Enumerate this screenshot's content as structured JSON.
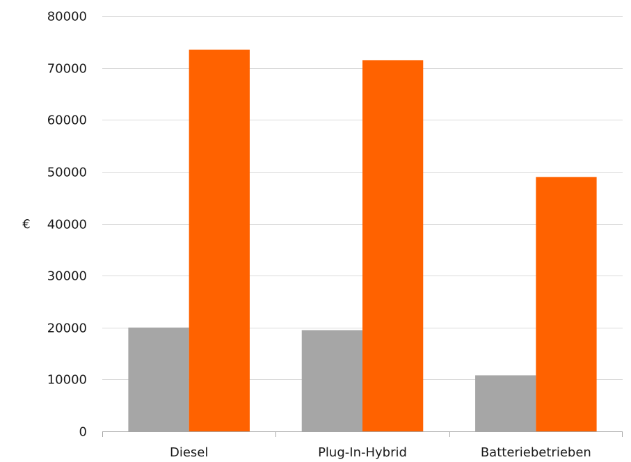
{
  "chart_data": {
    "type": "bar",
    "categories": [
      "Diesel",
      "Plug-In-Hybrid",
      "Batteriebetrieben"
    ],
    "series": [
      {
        "values": [
          20000,
          19500,
          10800
        ],
        "color": "#a6a6a6"
      },
      {
        "values": [
          73500,
          71500,
          49000
        ],
        "color": "#ff6200"
      }
    ],
    "ylabel": "€",
    "ylim": [
      0,
      80000
    ],
    "yticks": [
      0,
      10000,
      20000,
      30000,
      40000,
      50000,
      60000,
      70000,
      80000
    ],
    "grid": true,
    "legend": "none"
  }
}
